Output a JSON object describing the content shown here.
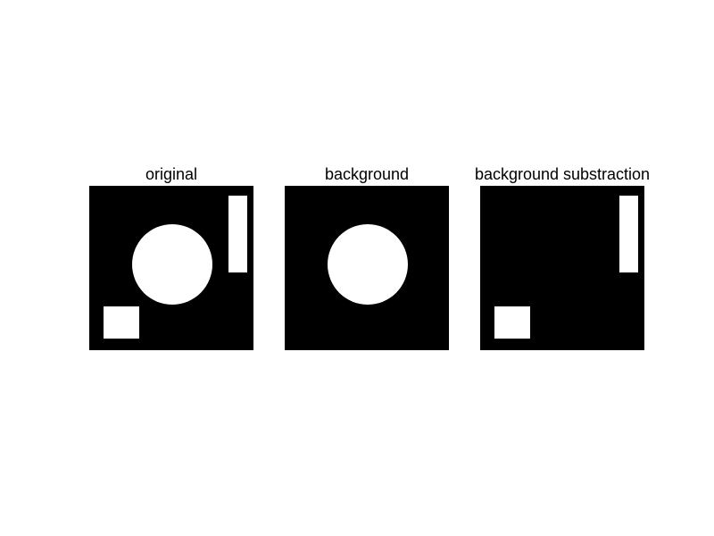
{
  "colors": {
    "background": "#ffffff",
    "foreground": "#000000",
    "image_background": "#000000",
    "shape_fill": "#ffffff"
  },
  "panels": [
    {
      "title": "original",
      "shapes": [
        "circle",
        "tall-rectangle",
        "small-rectangle"
      ]
    },
    {
      "title": "background",
      "shapes": [
        "circle"
      ]
    },
    {
      "title": "background substraction",
      "shapes": [
        "tall-rectangle",
        "small-rectangle"
      ]
    }
  ]
}
